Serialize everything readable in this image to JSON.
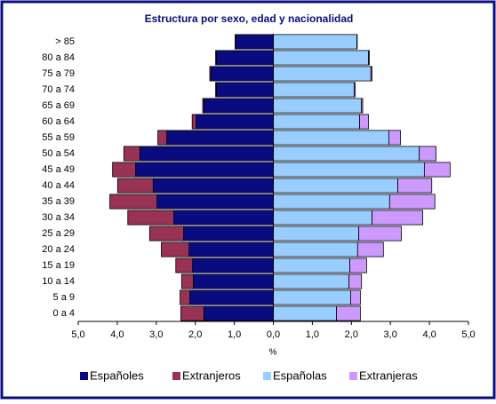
{
  "chart_data": {
    "type": "pyramid",
    "title": "Estructura por sexo, edad y nacionalidad",
    "x_label": "%",
    "categories": [
      "0 a 4",
      "5 a 9",
      "10 a 14",
      "15 a 19",
      "20 a 24",
      "25 a 29",
      "30 a 34",
      "35 a 39",
      "40 a 44",
      "45 a 49",
      "50 a 54",
      "55 a 59",
      "60 a 64",
      "65 a 69",
      "70 a 74",
      "75 a 79",
      "80 a 84",
      "> 85"
    ],
    "series": [
      {
        "name": "Españoles",
        "color": "#0b0b80",
        "values": [
          -1.78,
          -2.14,
          -2.05,
          -2.07,
          -2.16,
          -2.3,
          -2.55,
          -2.98,
          -3.08,
          -3.53,
          -3.42,
          -2.73,
          -1.98,
          -1.78,
          -1.46,
          -1.6,
          -1.46,
          -0.96
        ]
      },
      {
        "name": "Extranjeros",
        "color": "#993355",
        "values": [
          -0.59,
          -0.25,
          -0.3,
          -0.43,
          -0.71,
          -0.87,
          -1.18,
          -1.21,
          -0.91,
          -0.59,
          -0.41,
          -0.23,
          -0.1,
          -0.03,
          -0.02,
          -0.03,
          -0.02,
          -0.02
        ]
      },
      {
        "name": "Españolas",
        "color": "#99ccff",
        "values": [
          1.62,
          1.98,
          1.94,
          1.96,
          2.16,
          2.19,
          2.53,
          2.98,
          3.19,
          3.87,
          3.74,
          2.96,
          2.21,
          2.26,
          2.07,
          2.5,
          2.44,
          2.14
        ]
      },
      {
        "name": "Extranjeras",
        "color": "#cc99ff",
        "values": [
          0.61,
          0.25,
          0.32,
          0.43,
          0.66,
          1.09,
          1.3,
          1.16,
          0.87,
          0.66,
          0.43,
          0.3,
          0.23,
          0.03,
          0.03,
          0.03,
          0.02,
          0.01
        ]
      }
    ],
    "xlim": [
      -5,
      5
    ],
    "xticks": [
      {
        "value": -5,
        "label": "5,0"
      },
      {
        "value": -4,
        "label": "4,0"
      },
      {
        "value": -3,
        "label": "3,0"
      },
      {
        "value": -2,
        "label": "2,0"
      },
      {
        "value": -1,
        "label": "1,0"
      },
      {
        "value": 0,
        "label": "0,0"
      },
      {
        "value": 1,
        "label": "1,0"
      },
      {
        "value": 2,
        "label": "2,0"
      },
      {
        "value": 3,
        "label": "3,0"
      },
      {
        "value": 4,
        "label": "4,0"
      },
      {
        "value": 5,
        "label": "5,0"
      }
    ],
    "legend": "bottom"
  }
}
